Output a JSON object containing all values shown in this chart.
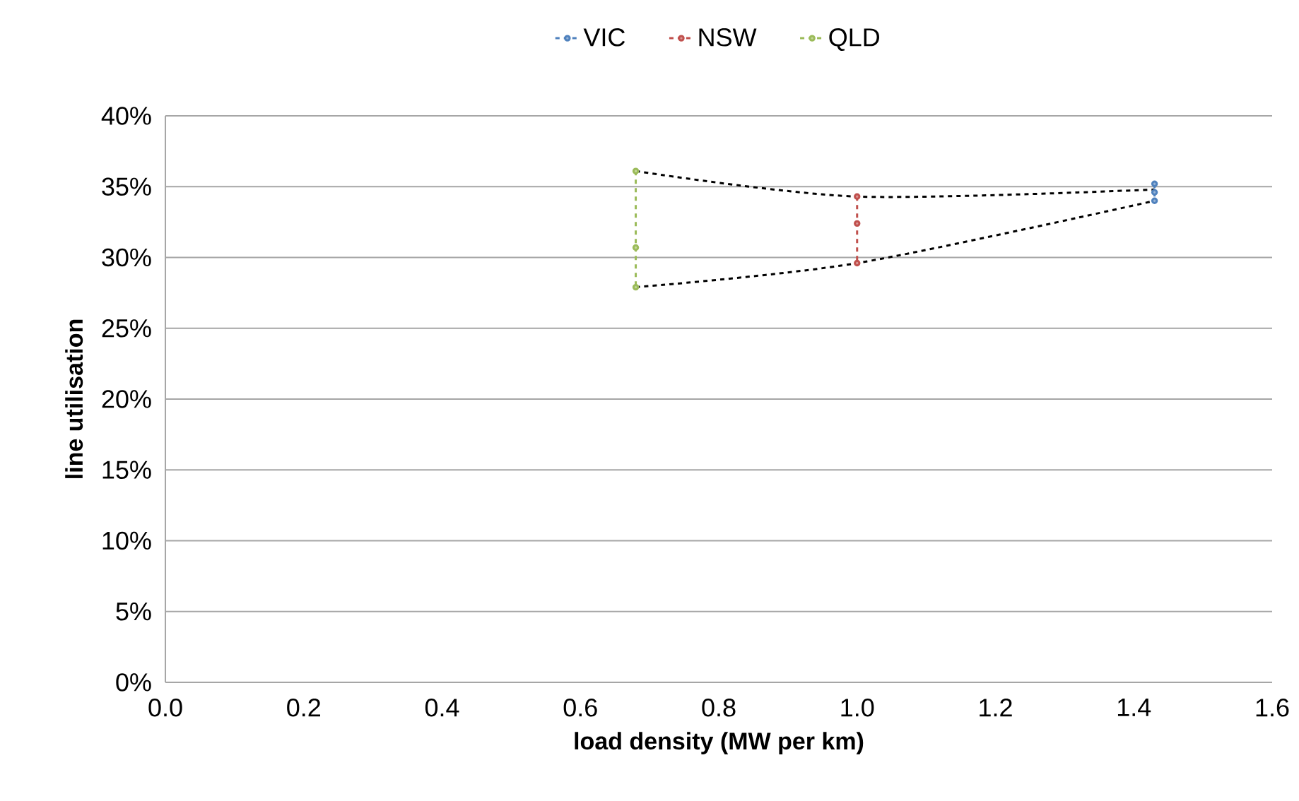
{
  "chart_data": {
    "type": "line",
    "xlabel": "load density (MW per km)",
    "ylabel": "line utilisation",
    "xlim": [
      0,
      1.6
    ],
    "xticks": [
      {
        "value": 0,
        "label": "0.0"
      },
      {
        "value": 0.2,
        "label": "0.2"
      },
      {
        "value": 0.4,
        "label": "0.4"
      },
      {
        "value": 0.6,
        "label": "0.6"
      },
      {
        "value": 0.8,
        "label": "0.8"
      },
      {
        "value": 1.0,
        "label": "1.0"
      },
      {
        "value": 1.2,
        "label": "1.2"
      },
      {
        "value": 1.4,
        "label": "1.4"
      },
      {
        "value": 1.6,
        "label": "1.6"
      }
    ],
    "ylim": [
      0,
      40
    ],
    "yticks": [
      {
        "value": 0,
        "label": "0%"
      },
      {
        "value": 5,
        "label": "5%"
      },
      {
        "value": 10,
        "label": "10%"
      },
      {
        "value": 15,
        "label": "15%"
      },
      {
        "value": 20,
        "label": "20%"
      },
      {
        "value": 25,
        "label": "25%"
      },
      {
        "value": 30,
        "label": "30%"
      },
      {
        "value": 35,
        "label": "35%"
      },
      {
        "value": 40,
        "label": "40%"
      }
    ],
    "grid": "y",
    "legend": "top",
    "marker": "circle",
    "line_style": "dashed",
    "series": [
      {
        "color": "#000000",
        "marker": "none",
        "x": [
          0.68,
          1.0,
          1.43
        ],
        "values": [
          36.1,
          34.3,
          34.8
        ]
      },
      {
        "color": "#000000",
        "marker": "none",
        "x": [
          0.68,
          1.0,
          1.43
        ],
        "values": [
          27.9,
          29.6,
          34.0
        ]
      },
      {
        "name": "VIC",
        "color": "#4f81bd",
        "x": [
          1.43,
          1.43,
          1.43
        ],
        "values": [
          35.2,
          34.6,
          34.0
        ]
      },
      {
        "name": "NSW",
        "color": "#c0504d",
        "x": [
          1.0,
          1.0,
          1.0
        ],
        "values": [
          34.3,
          32.4,
          29.6
        ]
      },
      {
        "name": "QLD",
        "color": "#9bbb59",
        "x": [
          0.68,
          0.68,
          0.68
        ],
        "values": [
          36.1,
          30.7,
          27.9
        ]
      }
    ]
  }
}
